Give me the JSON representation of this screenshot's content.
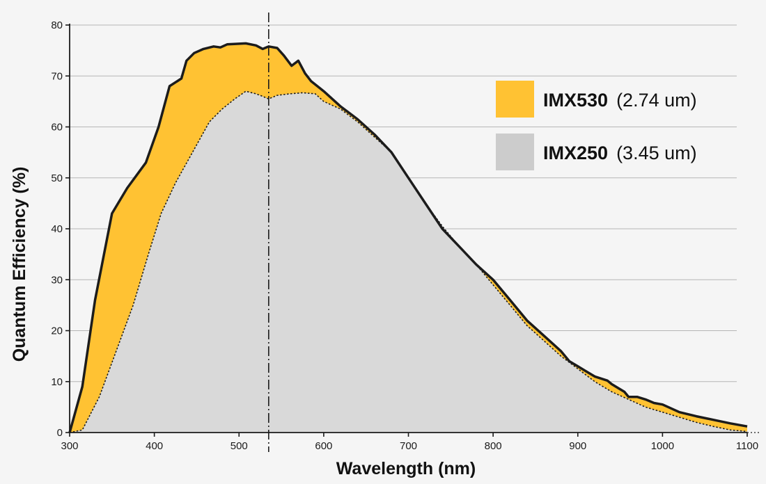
{
  "chart_data": {
    "type": "area",
    "xlabel": "Wavelength (nm)",
    "ylabel": "Quantum Efficiency (%)",
    "xlim": [
      300,
      1100
    ],
    "ylim": [
      0,
      80
    ],
    "xticks": [
      300,
      400,
      500,
      600,
      700,
      800,
      900,
      1000,
      1100
    ],
    "yticks": [
      0,
      10,
      20,
      30,
      40,
      50,
      60,
      70,
      80
    ],
    "grid": "horizontal",
    "reference_line_x": 535,
    "legend_position": "top-right",
    "series": [
      {
        "name": "IMX530",
        "detail": "(2.74 um)",
        "color": "#FFC233",
        "line": "solid",
        "x": [
          300,
          315,
          330,
          350,
          368,
          390,
          405,
          418,
          432,
          438,
          447,
          458,
          470,
          478,
          486,
          496,
          508,
          520,
          528,
          535,
          545,
          553,
          562,
          570,
          578,
          585,
          600,
          620,
          640,
          660,
          680,
          700,
          720,
          740,
          760,
          780,
          800,
          820,
          840,
          860,
          880,
          890,
          900,
          910,
          920,
          935,
          940,
          955,
          960,
          970,
          980,
          990,
          1000,
          1020,
          1040,
          1060,
          1080,
          1100
        ],
        "y": [
          0,
          9,
          26,
          43,
          48,
          53,
          60,
          68,
          69.5,
          73,
          74.5,
          75.3,
          75.8,
          75.6,
          76.2,
          76.3,
          76.4,
          76,
          75.3,
          75.8,
          75.5,
          74,
          72,
          73,
          70.5,
          69,
          67,
          64,
          61.5,
          58.5,
          55,
          50,
          45,
          40,
          36.5,
          33,
          30,
          26,
          22,
          19,
          16,
          14,
          13,
          12,
          11,
          10.2,
          9.5,
          8,
          7,
          7,
          6.5,
          5.8,
          5.5,
          4,
          3.2,
          2.5,
          1.8,
          1.2
        ]
      },
      {
        "name": "IMX250",
        "detail": "(3.45 um)",
        "color": "#D9D9D9",
        "line": "dotted",
        "x": [
          300,
          315,
          335,
          355,
          375,
          393,
          408,
          425,
          445,
          465,
          480,
          495,
          508,
          520,
          528,
          535,
          545,
          560,
          575,
          590,
          600,
          620,
          640,
          660,
          680,
          700,
          720,
          740,
          760,
          780,
          800,
          820,
          840,
          860,
          880,
          900,
          920,
          940,
          960,
          980,
          1000,
          1020,
          1040,
          1060,
          1080,
          1100
        ],
        "y": [
          0,
          0.5,
          7,
          16,
          25,
          35,
          43,
          49,
          55,
          61,
          63.5,
          65.5,
          67,
          66.5,
          66,
          65.5,
          66.2,
          66.5,
          66.7,
          66.5,
          65,
          63.5,
          61,
          58,
          55,
          50,
          45,
          40.5,
          36.5,
          33,
          29,
          25,
          21,
          18,
          15,
          12.5,
          10,
          8,
          6.5,
          5,
          4,
          3,
          2,
          1.2,
          0.5,
          0.2
        ]
      }
    ]
  }
}
